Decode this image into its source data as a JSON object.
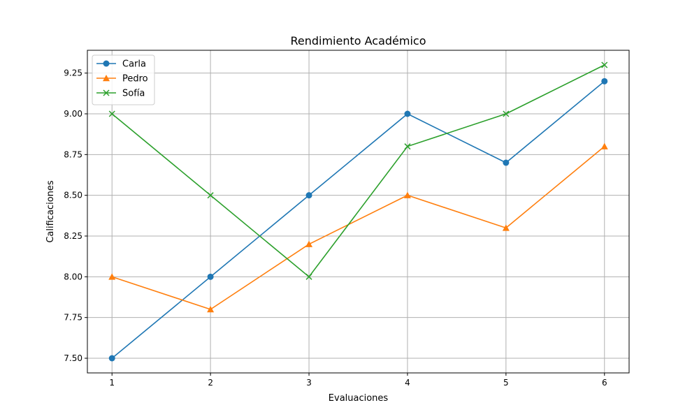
{
  "chart_data": {
    "type": "line",
    "title": "Rendimiento Académico",
    "xlabel": "Evaluaciones",
    "ylabel": "Calificaciones",
    "x": [
      1,
      2,
      3,
      4,
      5,
      6
    ],
    "xticks": [
      "1",
      "2",
      "3",
      "4",
      "5",
      "6"
    ],
    "yticks": [
      "7.50",
      "7.75",
      "8.00",
      "8.25",
      "8.50",
      "8.75",
      "9.00",
      "9.25"
    ],
    "yticks_values": [
      7.5,
      7.75,
      8.0,
      8.25,
      8.5,
      8.75,
      9.0,
      9.25
    ],
    "xlim": [
      0.75,
      6.25
    ],
    "ylim": [
      7.41,
      9.39
    ],
    "grid": true,
    "legend_position": "top-left",
    "series": [
      {
        "name": "Carla",
        "values": [
          7.5,
          8.0,
          8.5,
          9.0,
          8.7,
          9.2
        ],
        "color": "#1f77b4",
        "marker": "circle"
      },
      {
        "name": "Pedro",
        "values": [
          8.0,
          7.8,
          8.2,
          8.5,
          8.3,
          8.8
        ],
        "color": "#ff7f0e",
        "marker": "triangle"
      },
      {
        "name": "Sofía",
        "values": [
          9.0,
          8.5,
          8.0,
          8.8,
          9.0,
          9.3
        ],
        "color": "#2ca02c",
        "marker": "x"
      }
    ]
  }
}
